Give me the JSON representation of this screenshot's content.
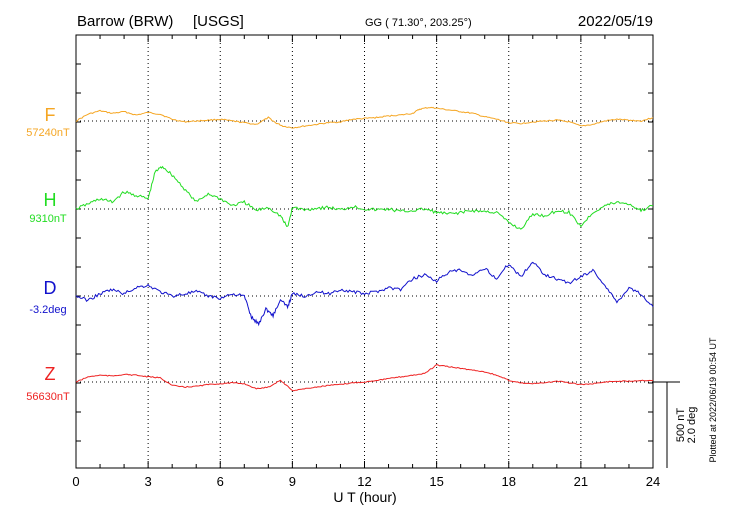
{
  "header": {
    "station": "Barrow (BRW)",
    "source": "[USGS]",
    "coords": "GG ( 71.30°, 203.25°)",
    "date": "2022/05/19"
  },
  "side_note": "Plotted at 2022/06/19 00:54 UT",
  "chart_data": {
    "type": "line",
    "xlabel": "U T (hour)",
    "xlim": [
      0,
      24
    ],
    "xticks": [
      0,
      3,
      6,
      9,
      12,
      15,
      18,
      21,
      24
    ],
    "grid": true,
    "scale_bar": {
      "label1": "500 nT",
      "label2": "2.0 deg"
    },
    "series": [
      {
        "name": "F",
        "baseline_label": "57240nT",
        "color": "#f5a623",
        "unit": "nT",
        "x": [
          0,
          0.5,
          1.0,
          1.5,
          2.0,
          2.5,
          3.0,
          3.5,
          4.0,
          4.5,
          5.0,
          5.5,
          6.0,
          6.5,
          7.0,
          7.5,
          8.0,
          8.3,
          8.6,
          9.0,
          9.5,
          10,
          10.5,
          11,
          11.5,
          12,
          12.5,
          13,
          13.5,
          14,
          14.3,
          14.7,
          15,
          15.5,
          16,
          16.5,
          17,
          17.5,
          18,
          18.5,
          19,
          19.5,
          20,
          20.5,
          21,
          21.5,
          22,
          22.5,
          23,
          23.5,
          24
        ],
        "y": [
          0,
          40,
          60,
          45,
          55,
          35,
          50,
          40,
          10,
          -5,
          0,
          5,
          10,
          0,
          -10,
          -20,
          20,
          -10,
          -30,
          -40,
          -30,
          -20,
          -10,
          -5,
          10,
          15,
          20,
          30,
          35,
          45,
          70,
          80,
          75,
          65,
          55,
          45,
          25,
          10,
          -10,
          -15,
          -5,
          0,
          5,
          -5,
          -30,
          -20,
          0,
          10,
          5,
          0,
          20
        ]
      },
      {
        "name": "H",
        "baseline_label": "9310nT",
        "color": "#22dd22",
        "unit": "nT",
        "x": [
          0,
          0.5,
          1.0,
          1.5,
          2.0,
          2.5,
          3.0,
          3.3,
          3.6,
          4.0,
          4.5,
          5.0,
          5.5,
          6.0,
          6.5,
          7.0,
          7.5,
          8.0,
          8.5,
          8.8,
          9.0,
          9.5,
          10,
          10.5,
          11,
          11.5,
          12,
          12.5,
          13,
          13.5,
          14,
          14.5,
          15,
          15.5,
          16,
          16.5,
          17,
          17.5,
          18,
          18.5,
          19,
          19.5,
          20,
          20.5,
          21,
          21.5,
          22,
          22.5,
          23,
          23.5,
          24
        ],
        "y": [
          0,
          30,
          60,
          40,
          100,
          80,
          60,
          220,
          250,
          200,
          120,
          40,
          90,
          60,
          20,
          40,
          -10,
          10,
          -40,
          -110,
          10,
          -5,
          5,
          10,
          -5,
          15,
          0,
          -5,
          0,
          -15,
          -10,
          0,
          -20,
          -30,
          -20,
          -10,
          -15,
          -20,
          -80,
          -120,
          -30,
          -40,
          -10,
          -20,
          -100,
          -20,
          20,
          40,
          30,
          -10,
          20
        ]
      },
      {
        "name": "D",
        "baseline_label": "-3.2deg",
        "color": "#1111cc",
        "unit": "deg",
        "x": [
          0,
          0.5,
          1.0,
          1.5,
          2.0,
          2.5,
          3.0,
          3.5,
          4.0,
          4.5,
          5.0,
          5.5,
          6.0,
          6.5,
          7.0,
          7.3,
          7.6,
          7.9,
          8.2,
          8.5,
          8.8,
          9.0,
          9.5,
          10,
          10.5,
          11,
          11.5,
          12,
          12.5,
          13,
          13.5,
          14,
          14.5,
          15,
          15.5,
          16,
          16.5,
          17,
          17.5,
          18,
          18.5,
          19,
          19.5,
          20,
          20.5,
          21,
          21.5,
          22,
          22.5,
          23,
          23.5,
          24
        ],
        "y": [
          0,
          -0.2,
          0.1,
          0.3,
          0.1,
          0.4,
          0.5,
          0.2,
          0.0,
          0.1,
          0.2,
          0.0,
          -0.1,
          0.1,
          0.0,
          -1.0,
          -1.3,
          -0.6,
          -0.9,
          -0.2,
          -0.5,
          0.1,
          0.0,
          0.2,
          0.1,
          0.3,
          0.2,
          0.1,
          0.2,
          0.4,
          0.3,
          0.8,
          1.0,
          0.7,
          1.1,
          1.2,
          0.9,
          1.3,
          0.8,
          1.5,
          0.9,
          1.6,
          1.0,
          0.8,
          0.6,
          0.9,
          1.2,
          0.5,
          -0.3,
          0.4,
          0.1,
          -0.5
        ]
      },
      {
        "name": "Z",
        "baseline_label": "56630nT",
        "color": "#ee2222",
        "unit": "nT",
        "x": [
          0,
          0.5,
          1.0,
          1.5,
          2.0,
          2.5,
          3.0,
          3.5,
          4.0,
          4.5,
          5.0,
          5.5,
          6.0,
          6.5,
          7.0,
          7.5,
          8.0,
          8.5,
          9.0,
          9.5,
          10,
          10.5,
          11,
          11.5,
          12,
          12.5,
          13,
          13.5,
          14,
          14.5,
          15,
          15.5,
          16,
          16.5,
          17,
          17.5,
          18,
          18.5,
          19,
          19.5,
          20,
          20.5,
          21,
          21.5,
          22,
          22.5,
          23,
          23.5,
          24
        ],
        "y": [
          0,
          30,
          40,
          35,
          45,
          40,
          30,
          25,
          -20,
          -30,
          -25,
          -15,
          -10,
          -5,
          -10,
          -40,
          -30,
          10,
          -50,
          -40,
          -30,
          -20,
          -15,
          -5,
          0,
          10,
          20,
          30,
          40,
          50,
          100,
          90,
          80,
          70,
          60,
          40,
          10,
          -5,
          -10,
          -5,
          5,
          -5,
          -15,
          -10,
          0,
          5,
          5,
          10,
          10
        ]
      }
    ]
  }
}
